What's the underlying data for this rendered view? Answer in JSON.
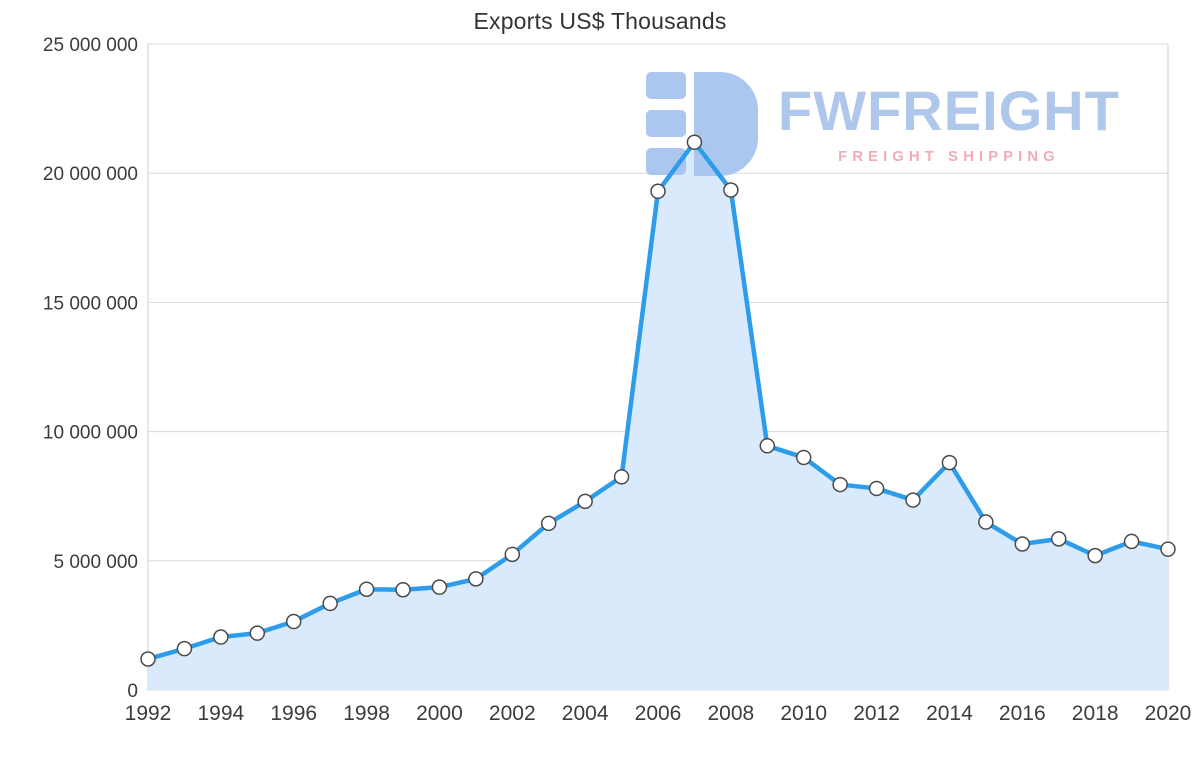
{
  "page": {
    "background": "#ffffff"
  },
  "chart_data": {
    "type": "area",
    "title": "Exports US$ Thousands",
    "x": [
      1992,
      1993,
      1994,
      1995,
      1996,
      1997,
      1998,
      1999,
      2000,
      2001,
      2002,
      2003,
      2004,
      2005,
      2006,
      2007,
      2008,
      2009,
      2010,
      2011,
      2012,
      2013,
      2014,
      2015,
      2016,
      2017,
      2018,
      2019,
      2020
    ],
    "values": [
      1200000,
      1600000,
      2050000,
      2200000,
      2650000,
      3350000,
      3900000,
      3880000,
      3980000,
      4300000,
      5250000,
      6450000,
      7300000,
      8250000,
      19300000,
      21200000,
      19350000,
      9450000,
      9000000,
      7950000,
      7800000,
      7350000,
      8800000,
      6500000,
      5650000,
      5850000,
      5200000,
      5750000,
      5450000
    ],
    "ylim": [
      0,
      25000000
    ],
    "ytick_values": [
      0,
      5000000,
      10000000,
      15000000,
      20000000,
      25000000
    ],
    "yticks": [
      "0",
      "5 000 000",
      "10 000 000",
      "15 000 000",
      "20 000 000",
      "25 000 000"
    ],
    "xticks": [
      1992,
      1994,
      1996,
      1998,
      2000,
      2002,
      2004,
      2006,
      2008,
      2010,
      2012,
      2014,
      2016,
      2018,
      2020
    ],
    "grid": true,
    "legend": "none",
    "xlabel": "",
    "ylabel": "",
    "line_color": "#2d9cea",
    "area_color": "#d8eafc",
    "marker_fill": "#ffffff",
    "marker_stroke": "#4a4a4a",
    "grid_color": "#d9d9d9",
    "axis_line_color": "#cfcfcf",
    "label_color": "#3c3c3c"
  },
  "watermark": {
    "brand": "FWFREIGHT",
    "tagline": "FREIGHT SHIPPING",
    "brand_color": "#a9c3e9",
    "tagline_color": "#f2a6b0",
    "logo_color": "#a5c3ee"
  }
}
